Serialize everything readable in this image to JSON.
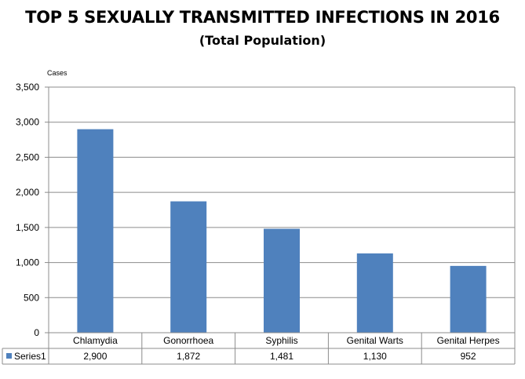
{
  "title": "TOP 5 SEXUALLY TRANSMITTED INFECTIONS IN 2016",
  "subtitle": "(Total Population)",
  "chart_data": {
    "type": "bar",
    "title": "TOP 5 SEXUALLY TRANSMITTED INFECTIONS IN 2016",
    "subtitle": "(Total Population)",
    "ylabel": "Cases",
    "xlabel": "",
    "categories": [
      "Chlamydia",
      "Gonorrhoea",
      "Syphilis",
      "Genital Warts",
      "Genital Herpes"
    ],
    "series": [
      {
        "name": "Series1",
        "values": [
          2900,
          1872,
          1481,
          1130,
          952
        ],
        "value_labels": [
          "2,900",
          "1,872",
          "1,481",
          "1,130",
          "952"
        ],
        "color": "#4f81bd"
      }
    ],
    "ylim": [
      0,
      3500
    ],
    "yticks": [
      0,
      500,
      1000,
      1500,
      2000,
      2500,
      3000,
      3500
    ],
    "ytick_labels": [
      "0",
      "500",
      "1,000",
      "1,500",
      "2,000",
      "2,500",
      "3,000",
      "3,500"
    ],
    "grid": true,
    "data_table": true
  }
}
